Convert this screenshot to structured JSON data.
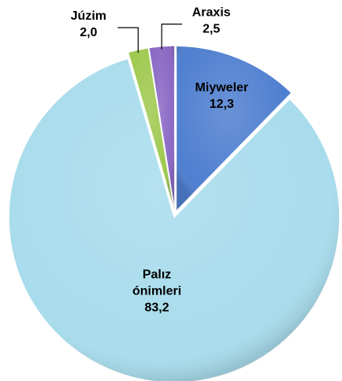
{
  "chart_data": {
    "type": "pie",
    "categories": [
      "Miyweler",
      "Palız ónimleri",
      "Júzim",
      "Araxis"
    ],
    "values": [
      12.3,
      83.2,
      2.0,
      2.5
    ],
    "value_labels": [
      "12,3",
      "83,2",
      "2,0",
      "2,5"
    ],
    "colors": [
      "#4f7fd0",
      "#a8dcec",
      "#9fc94f",
      "#8a68c4"
    ]
  }
}
